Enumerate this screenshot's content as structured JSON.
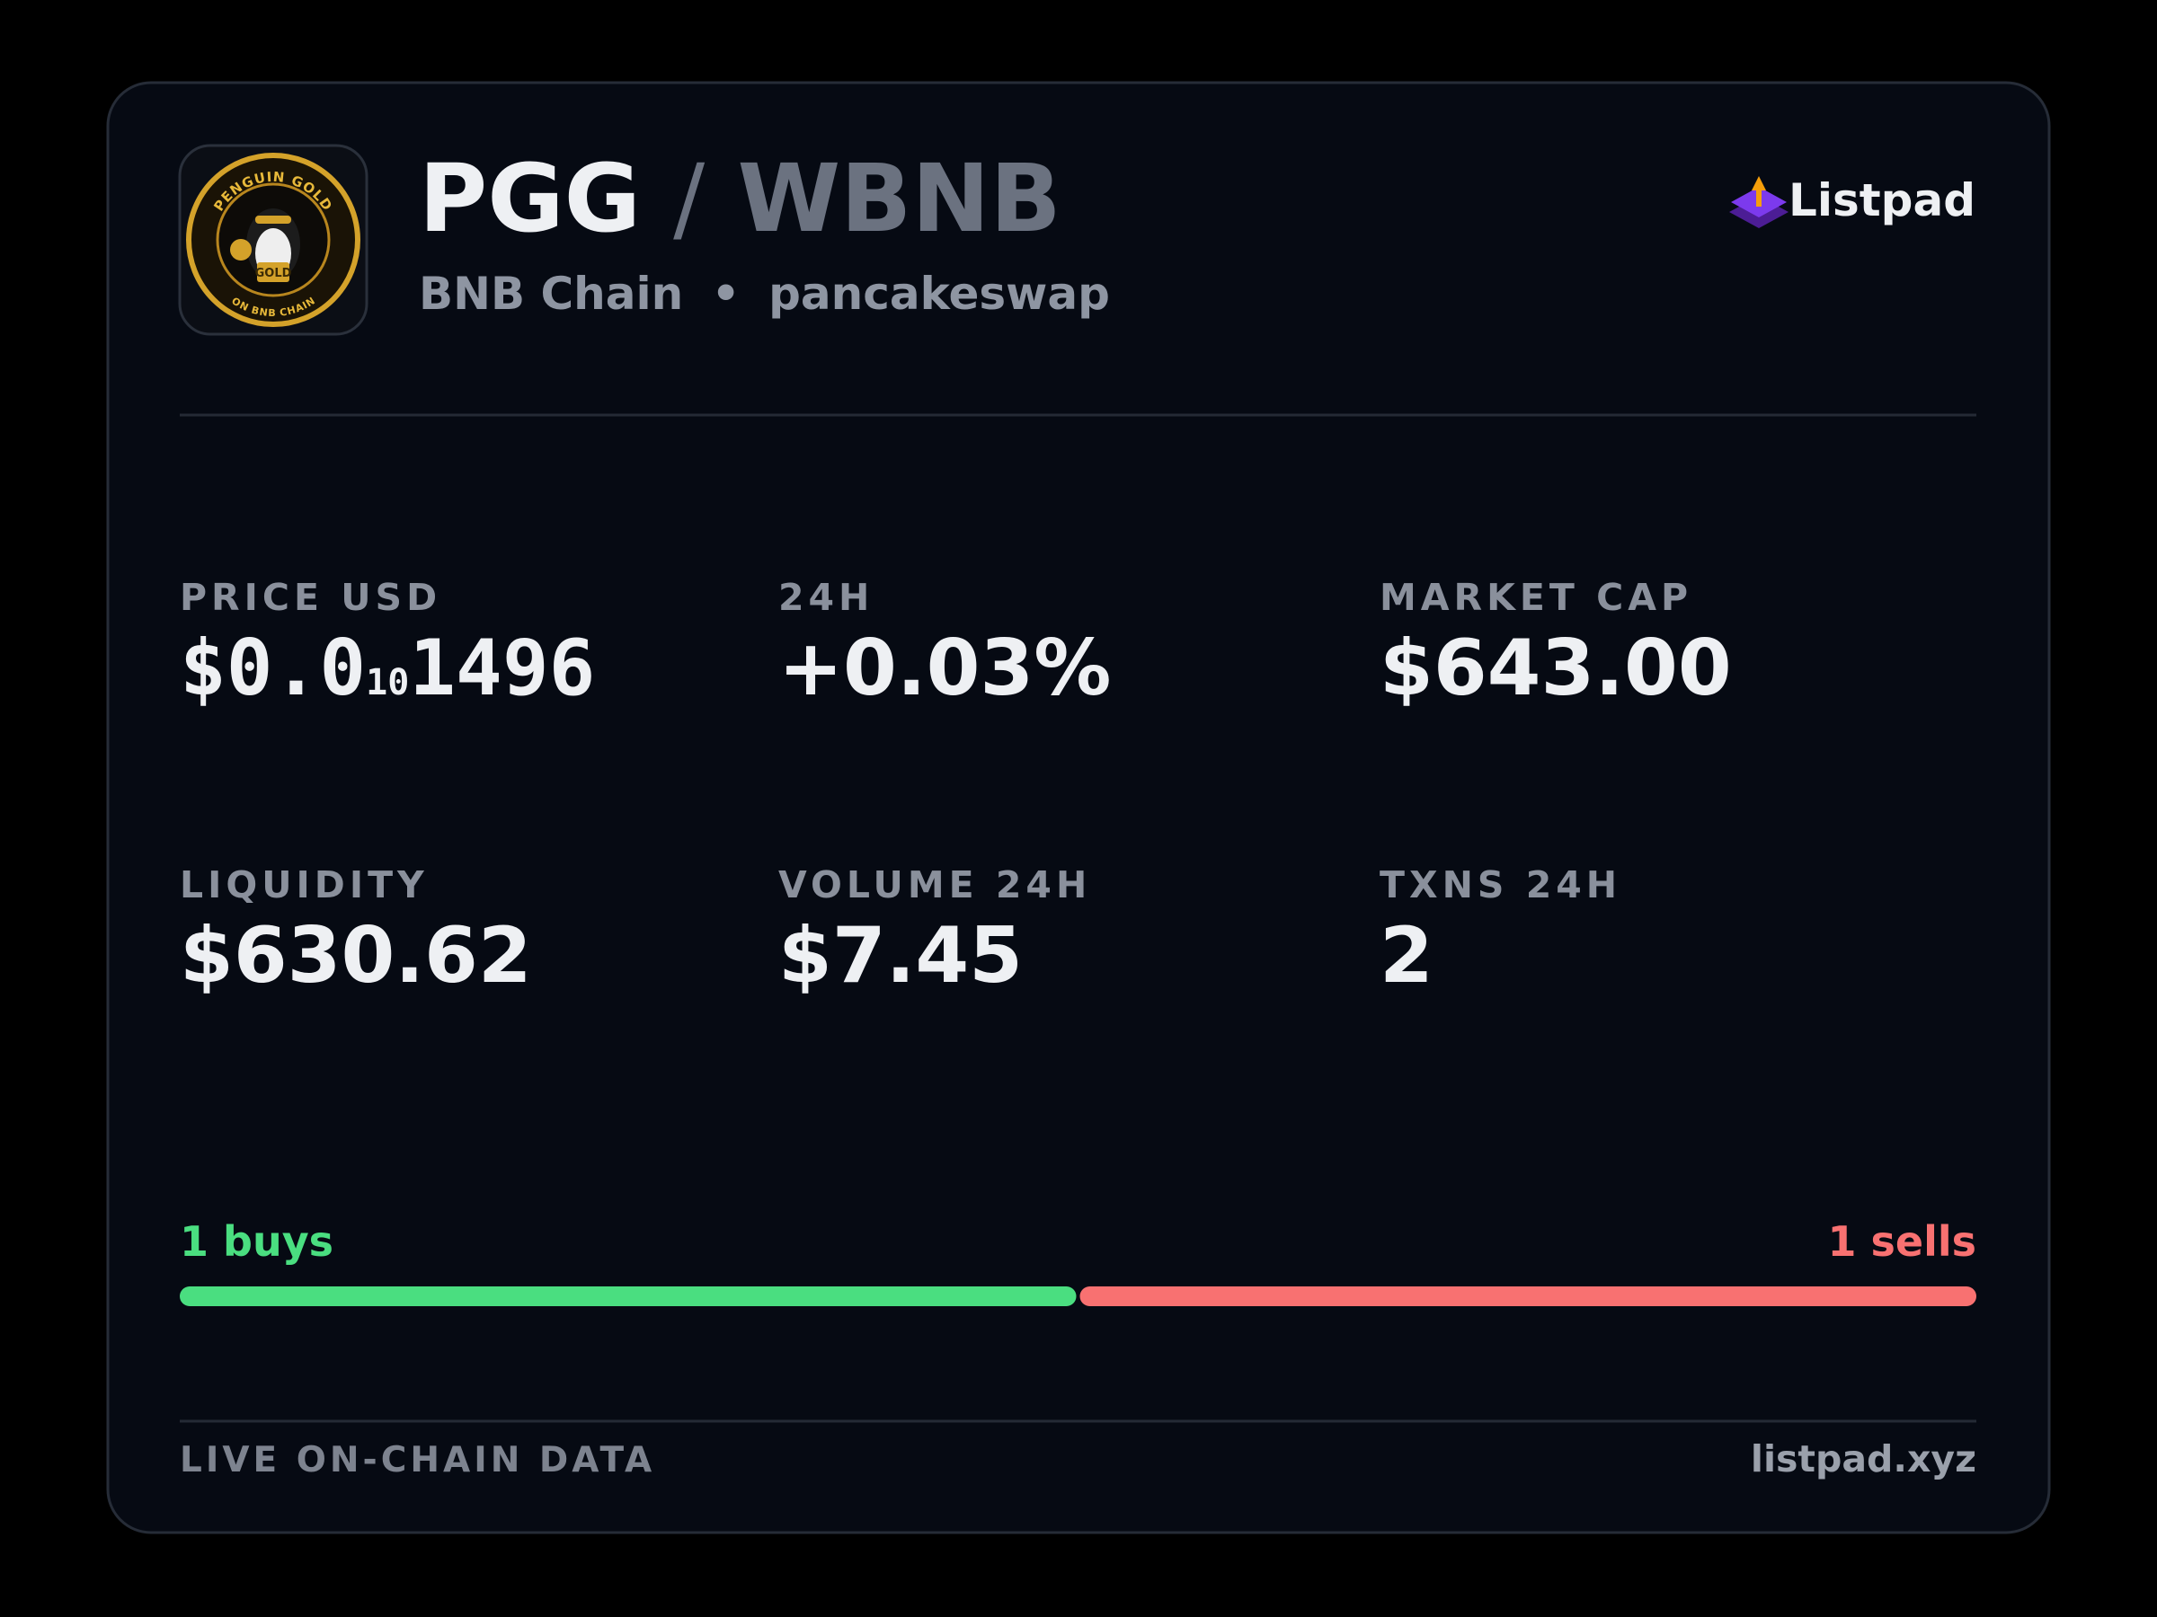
{
  "header": {
    "base": "PGG",
    "separator": "/",
    "quote": "WBNB",
    "chain": "BNB Chain",
    "bullet": "•",
    "dex": "pancakeswap",
    "brand": "Listpad"
  },
  "logo": {
    "text_top": "PENGUIN GOLD",
    "text_bottom": "ON BNB CHAIN",
    "badge": "GOLD"
  },
  "stats": [
    {
      "label": "PRICE USD",
      "value_prefix": "$0.0",
      "value_zeros": "10",
      "value_digits": "1496"
    },
    {
      "label": "24H",
      "value": "+0.03%"
    },
    {
      "label": "MARKET CAP",
      "value": "$643.00"
    },
    {
      "label": "LIQUIDITY",
      "value": "$630.62"
    },
    {
      "label": "VOLUME 24H",
      "value": "$7.45"
    },
    {
      "label": "TXNS 24H",
      "value": "2"
    }
  ],
  "trades": {
    "buys": {
      "value": 1,
      "label": "1 buys"
    },
    "sells": {
      "value": 1,
      "label": "1 sells"
    }
  },
  "footer": {
    "left": "LIVE ON-CHAIN DATA",
    "right": "listpad.xyz"
  }
}
